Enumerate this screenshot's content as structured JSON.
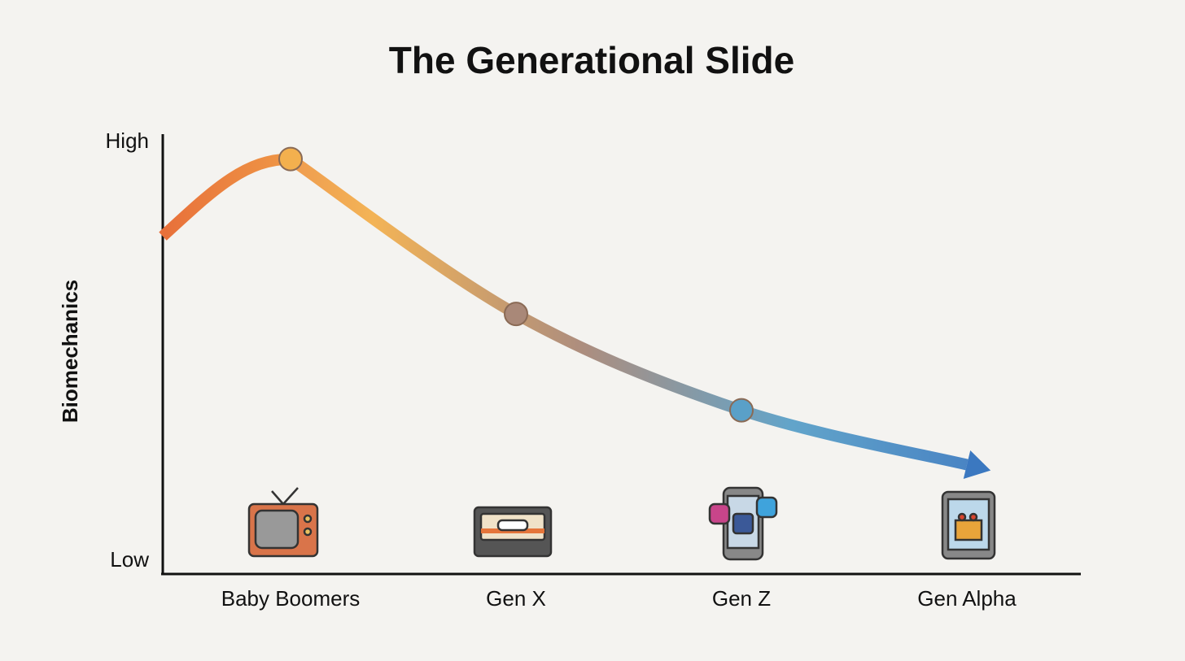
{
  "chart_data": {
    "type": "line",
    "title": "The Generational Slide",
    "y_label": "Biomechanics",
    "categories": [
      "Baby Boomers",
      "Gen X",
      "Gen Z",
      "Gen Alpha"
    ],
    "series": [
      {
        "values": [
          96,
          59,
          36,
          23
        ]
      }
    ],
    "gradient": [
      "#e8703a",
      "#f3b04e",
      "#a98878",
      "#5aa0c8",
      "#3b78c0"
    ],
    "ylim": [
      0,
      100
    ],
    "yticks": [
      {
        "value": 0,
        "label": "Low"
      },
      {
        "value": 100,
        "label": "High"
      }
    ]
  }
}
